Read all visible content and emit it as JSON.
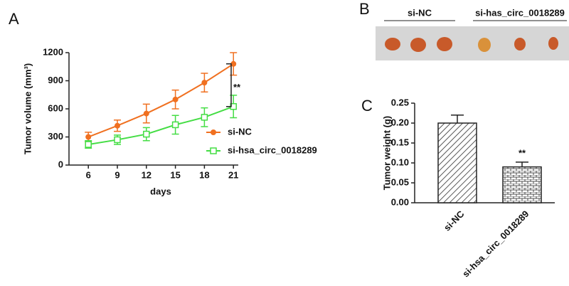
{
  "chart_data": [
    {
      "type": "line",
      "panel_label": "A",
      "x_label": "days",
      "y_label": "Tumor volume (mm³)",
      "x": [
        6,
        9,
        12,
        15,
        18,
        21
      ],
      "xlim": [
        4,
        21.5
      ],
      "xticks": [
        6,
        9,
        12,
        15,
        18,
        21
      ],
      "ylim": [
        0,
        1200
      ],
      "yticks": [
        0,
        300,
        600,
        900,
        1200
      ],
      "legend": "right",
      "annotation": "**",
      "series": [
        {
          "name": "si-NC",
          "color": "#f07020",
          "marker": "circle",
          "values": [
            300,
            420,
            550,
            700,
            880,
            1080
          ],
          "errors": [
            50,
            60,
            100,
            100,
            100,
            120
          ]
        },
        {
          "name": "si-hsa_circ_0018289",
          "color": "#44dd44",
          "marker": "open-square",
          "values": [
            220,
            270,
            330,
            430,
            510,
            625
          ],
          "errors": [
            40,
            50,
            70,
            100,
            100,
            120
          ]
        }
      ]
    },
    {
      "type": "bar",
      "panel_label": "C",
      "y_label": "Tumor weight (g)",
      "categories": [
        "si-NC",
        "si-hsa_circ_0018289"
      ],
      "values": [
        0.2,
        0.09
      ],
      "errors": [
        0.02,
        0.012
      ],
      "ylim": [
        0,
        0.25
      ],
      "annotation": "**",
      "yticks": [
        {
          "value": 0,
          "label": "0.00"
        },
        {
          "value": 0.05,
          "label": "0.05"
        },
        {
          "value": 0.1,
          "label": "0.10"
        },
        {
          "value": 0.15,
          "label": "0.15"
        },
        {
          "value": 0.2,
          "label": "0.20"
        },
        {
          "value": 0.25,
          "label": "0.25"
        }
      ]
    }
  ],
  "photo": {
    "panel_label": "B",
    "groups": [
      "si-NC",
      "si-has_circ_0018289"
    ]
  }
}
